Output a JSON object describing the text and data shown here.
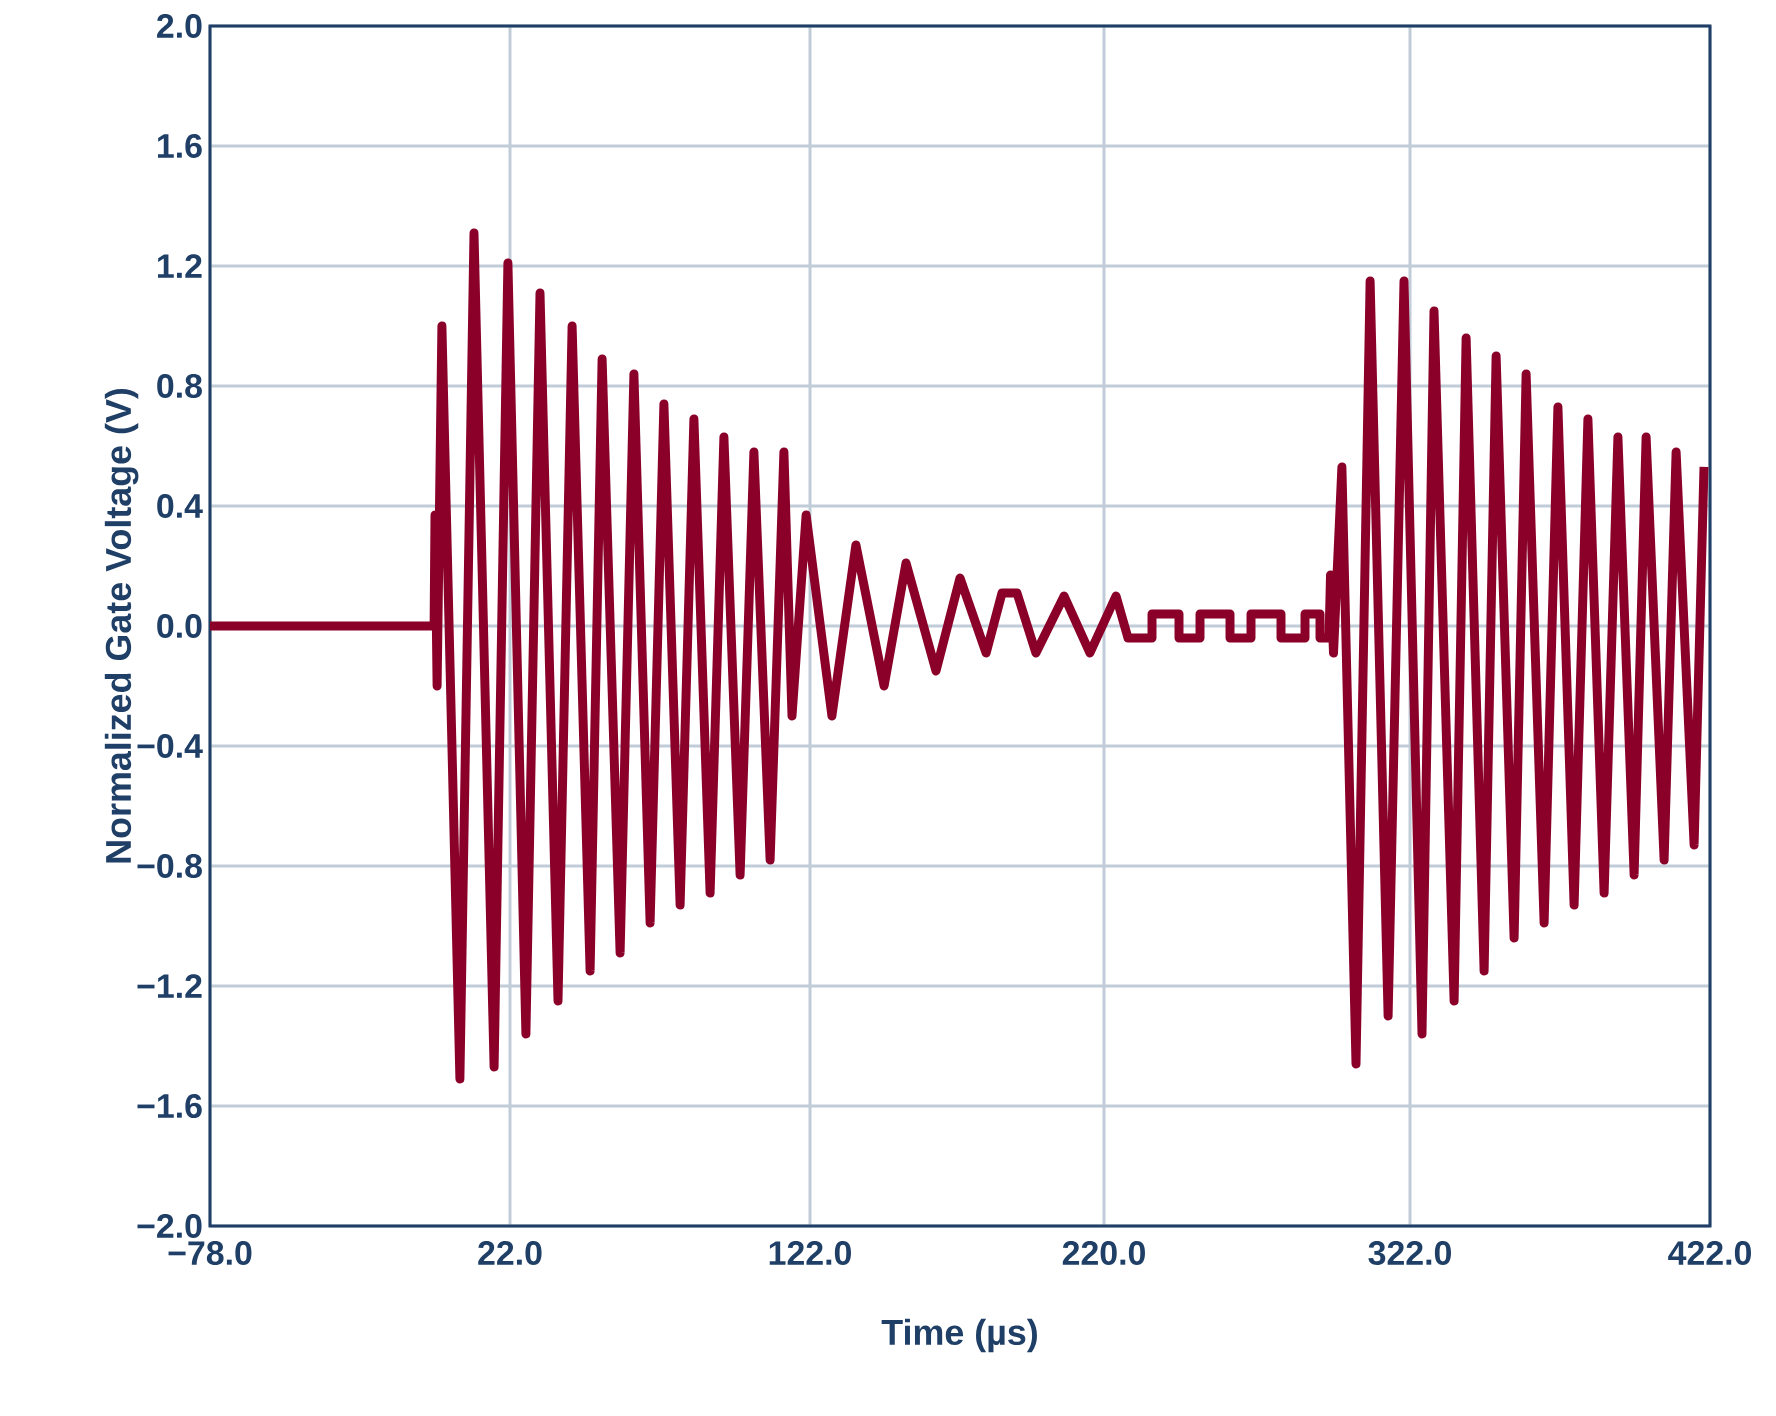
{
  "chart_data": {
    "type": "line",
    "xlabel": "Time (µs)",
    "ylabel": "Normalized Gate Voltage (V)",
    "xlim": [
      -78,
      422
    ],
    "ylim": [
      -2,
      2
    ],
    "xticks": [
      {
        "value": -78,
        "label": "−78.0"
      },
      {
        "value": 22,
        "label": "22.0"
      },
      {
        "value": 122,
        "label": "122.0"
      },
      {
        "value": 220,
        "label": "220.0"
      },
      {
        "value": 322,
        "label": "322.0"
      },
      {
        "value": 422,
        "label": "422.0"
      }
    ],
    "yticks": [
      {
        "value": -2,
        "label": "−2.0"
      },
      {
        "value": -1.6,
        "label": "−1.6"
      },
      {
        "value": -1.2,
        "label": "−1.2"
      },
      {
        "value": -0.8,
        "label": "−0.8"
      },
      {
        "value": -0.4,
        "label": "−0.4"
      },
      {
        "value": 0,
        "label": "0.0"
      },
      {
        "value": 0.4,
        "label": "0.4"
      },
      {
        "value": 0.8,
        "label": "0.8"
      },
      {
        "value": 1.2,
        "label": "1.2"
      },
      {
        "value": 1.6,
        "label": "1.6"
      },
      {
        "value": 2,
        "label": "2.0"
      }
    ],
    "grid": true,
    "marker": "none",
    "line_style": "solid",
    "series": [
      {
        "color": "#8b0029",
        "x": [
          -78,
          -3.3,
          -3,
          -2.3,
          -0.7,
          5.3,
          10,
          16.7,
          21.3,
          27.3,
          32,
          38,
          42.7,
          48.7,
          52.7,
          58.7,
          63.3,
          68.7,
          73.3,
          78.7,
          83.3,
          88.7,
          93.3,
          98.7,
          103.3,
          108.7,
          113.3,
          116,
          120.7,
          129.3,
          137.3,
          146.7,
          154,
          164,
          172,
          180.7,
          186,
          191,
          197.3,
          206.7,
          215.3,
          224,
          228,
          236,
          236,
          245,
          245,
          252,
          252,
          262,
          262,
          269,
          269,
          279,
          279,
          287,
          287,
          292,
          292,
          295,
          295.5,
          296.5,
          299.3,
          304,
          308.7,
          314.7,
          320,
          326,
          330,
          336.7,
          340.7,
          346.7,
          350.7,
          356.7,
          360.7,
          366.7,
          371.3,
          376.7,
          381.3,
          386.7,
          391.3,
          396.7,
          400.7,
          406.7,
          410.7,
          416.7,
          420
        ],
        "values": [
          0,
          0,
          0.37,
          -0.2,
          1.0,
          -1.51,
          1.31,
          -1.47,
          1.21,
          -1.36,
          1.11,
          -1.25,
          1.0,
          -1.15,
          0.89,
          -1.09,
          0.84,
          -0.99,
          0.74,
          -0.93,
          0.69,
          -0.89,
          0.63,
          -0.83,
          0.58,
          -0.78,
          0.58,
          -0.3,
          0.37,
          -0.3,
          0.27,
          -0.2,
          0.21,
          -0.15,
          0.16,
          -0.09,
          0.11,
          0.11,
          -0.09,
          0.1,
          -0.09,
          0.1,
          -0.04,
          -0.04,
          0.04,
          0.04,
          -0.04,
          -0.04,
          0.04,
          0.04,
          -0.04,
          -0.04,
          0.04,
          0.04,
          -0.04,
          -0.04,
          0.04,
          0.04,
          -0.04,
          -0.04,
          0.17,
          -0.09,
          0.53,
          -1.46,
          1.15,
          -1.3,
          1.15,
          -1.36,
          1.05,
          -1.25,
          0.96,
          -1.15,
          0.9,
          -1.04,
          0.84,
          -0.99,
          0.73,
          -0.93,
          0.69,
          -0.89,
          0.63,
          -0.83,
          0.63,
          -0.78,
          0.58,
          -0.73,
          0.53
        ]
      }
    ]
  }
}
